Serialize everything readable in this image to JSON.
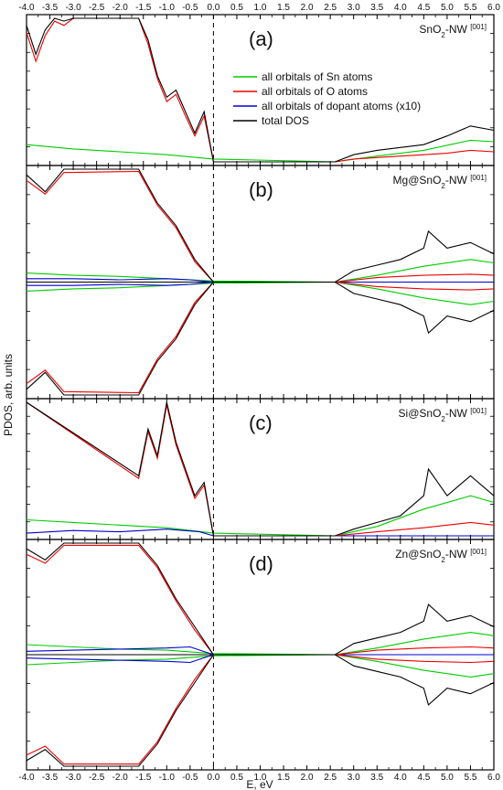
{
  "chart_data": {
    "type": "line",
    "xlabel": "E, eV",
    "ylabel": "PDOS, arb. units",
    "xlim": [
      -4.0,
      6.0
    ],
    "x_ticks": [
      "-4.0",
      "-3.5",
      "-3.0",
      "-2.5",
      "-2.0",
      "-1.5",
      "-1.0",
      "-0.5",
      "0.0",
      "0.5",
      "1.0",
      "1.5",
      "2.0",
      "2.5",
      "3.0",
      "3.5",
      "4.0",
      "4.5",
      "5.0",
      "5.5",
      "6.0"
    ],
    "fermi_level": 0.0,
    "legend": {
      "placement": "inside panel (a), upper-middle",
      "entries": [
        {
          "label": "all orbitals of Sn atoms",
          "color": "#00cc00"
        },
        {
          "label": "all orbitals of O atoms",
          "color": "#ee0000"
        },
        {
          "label": "all orbitals of dopant atoms (x10)",
          "color": "#0000cc"
        },
        {
          "label": "total DOS",
          "color": "#000000"
        }
      ]
    },
    "panels": [
      {
        "letter": "(a)",
        "title_main": "SnO",
        "title_sub": "2",
        "title_rest": "-NW ",
        "title_sup": "[001]",
        "spin_polarized": false,
        "has_dopant": false,
        "series": [
          {
            "name": "total DOS",
            "color": "#000000",
            "x": [
              -4.0,
              -3.8,
              -3.6,
              -3.4,
              -3.2,
              -3.0,
              -1.6,
              -1.4,
              -1.2,
              -1.0,
              -0.8,
              -0.6,
              -0.4,
              -0.2,
              0.0,
              2.6,
              3.0,
              3.5,
              4.0,
              4.5,
              5.0,
              5.5,
              6.0
            ],
            "y": [
              0.95,
              0.75,
              0.92,
              1.0,
              0.98,
              1.0,
              1.0,
              0.85,
              0.6,
              0.45,
              0.5,
              0.35,
              0.2,
              0.35,
              0.0,
              0.0,
              0.05,
              0.08,
              0.1,
              0.12,
              0.18,
              0.25,
              0.22
            ]
          },
          {
            "name": "all orbitals of O atoms",
            "color": "#ee0000",
            "x": [
              -4.0,
              -3.8,
              -3.6,
              -3.4,
              -3.2,
              -3.0,
              -1.6,
              -1.4,
              -1.2,
              -1.0,
              -0.8,
              -0.6,
              -0.4,
              -0.2,
              0.0,
              2.6,
              3.0,
              3.5,
              4.0,
              4.5,
              5.0,
              5.5,
              6.0
            ],
            "y": [
              0.9,
              0.7,
              0.88,
              0.98,
              0.95,
              1.0,
              1.0,
              0.82,
              0.58,
              0.42,
              0.47,
              0.32,
              0.18,
              0.32,
              0.0,
              0.0,
              0.02,
              0.03,
              0.04,
              0.05,
              0.06,
              0.08,
              0.07
            ]
          },
          {
            "name": "all orbitals of Sn atoms",
            "color": "#00cc00",
            "x": [
              -4.0,
              -3.0,
              -2.0,
              -1.0,
              0.0,
              2.6,
              3.5,
              4.5,
              5.5,
              6.0
            ],
            "y": [
              0.12,
              0.09,
              0.07,
              0.05,
              0.02,
              0.0,
              0.04,
              0.08,
              0.15,
              0.14
            ]
          }
        ]
      },
      {
        "letter": "(b)",
        "title_main": "Mg@SnO",
        "title_sub": "2",
        "title_rest": "-NW ",
        "title_sup": "[001]",
        "spin_polarized": true,
        "has_dopant": true,
        "series": [
          {
            "name": "total DOS",
            "color": "#000000",
            "x": [
              -4.0,
              -3.6,
              -3.2,
              -1.6,
              -1.2,
              -0.8,
              -0.4,
              0.0,
              2.6,
              3.0,
              3.5,
              4.0,
              4.5,
              4.6,
              5.0,
              5.5,
              6.0
            ],
            "y": [
              0.95,
              0.8,
              1.0,
              1.0,
              0.7,
              0.5,
              0.2,
              0.0,
              0.0,
              0.1,
              0.15,
              0.2,
              0.3,
              0.45,
              0.3,
              0.35,
              0.25
            ]
          },
          {
            "name": "all orbitals of O atoms",
            "color": "#ee0000",
            "x": [
              -4.0,
              -3.6,
              -3.2,
              -1.6,
              -1.2,
              -0.8,
              -0.4,
              0.0,
              2.6,
              3.5,
              4.5,
              5.5,
              6.0
            ],
            "y": [
              0.9,
              0.78,
              0.97,
              0.98,
              0.68,
              0.48,
              0.18,
              0.0,
              0.0,
              0.04,
              0.06,
              0.07,
              0.06
            ]
          },
          {
            "name": "all orbitals of Sn atoms",
            "color": "#00cc00",
            "x": [
              -4.0,
              -3.0,
              -2.0,
              -1.0,
              0.0,
              2.6,
              3.5,
              4.5,
              5.5,
              6.0
            ],
            "y": [
              0.08,
              0.06,
              0.05,
              0.03,
              0.01,
              0.0,
              0.06,
              0.14,
              0.2,
              0.17
            ]
          },
          {
            "name": "all orbitals of dopant atoms (x10)",
            "color": "#0000cc",
            "x": [
              -4.0,
              -3.0,
              -2.0,
              -1.0,
              -0.5,
              0.0,
              2.6,
              4.0,
              6.0
            ],
            "y": [
              0.03,
              0.03,
              0.02,
              0.03,
              0.02,
              0.0,
              0.0,
              0.0,
              0.0
            ]
          }
        ]
      },
      {
        "letter": "(c)",
        "title_main": "Si@SnO",
        "title_sub": "2",
        "title_rest": "-NW ",
        "title_sup": "[001]",
        "spin_polarized": false,
        "has_dopant": true,
        "series": [
          {
            "name": "total DOS",
            "color": "#000000",
            "x": [
              -4.0,
              -1.6,
              -1.4,
              -1.2,
              -1.0,
              -0.8,
              -0.6,
              -0.4,
              -0.2,
              0.0,
              2.6,
              3.0,
              3.5,
              4.0,
              4.5,
              4.6,
              5.0,
              5.5,
              6.0
            ],
            "y": [
              1.0,
              0.45,
              0.8,
              0.6,
              1.0,
              0.7,
              0.5,
              0.3,
              0.4,
              0.0,
              0.0,
              0.05,
              0.1,
              0.15,
              0.3,
              0.5,
              0.3,
              0.45,
              0.3
            ]
          },
          {
            "name": "all orbitals of O atoms",
            "color": "#ee0000",
            "x": [
              -4.0,
              -1.6,
              -1.4,
              -1.2,
              -1.0,
              -0.8,
              -0.6,
              -0.4,
              -0.2,
              0.0,
              2.6,
              3.5,
              4.5,
              5.5,
              6.0
            ],
            "y": [
              1.0,
              0.43,
              0.78,
              0.58,
              0.98,
              0.68,
              0.48,
              0.28,
              0.38,
              0.0,
              0.0,
              0.03,
              0.06,
              0.1,
              0.08
            ]
          },
          {
            "name": "all orbitals of Sn atoms",
            "color": "#00cc00",
            "x": [
              -4.0,
              -3.0,
              -2.0,
              -1.0,
              0.0,
              2.6,
              3.5,
              4.5,
              5.5,
              6.0
            ],
            "y": [
              0.12,
              0.1,
              0.08,
              0.06,
              0.02,
              0.0,
              0.07,
              0.2,
              0.3,
              0.25
            ]
          },
          {
            "name": "all orbitals of dopant atoms (x10)",
            "color": "#0000cc",
            "x": [
              -4.0,
              -3.0,
              -2.0,
              -1.0,
              -0.3,
              0.0,
              2.6,
              6.0
            ],
            "y": [
              0.02,
              0.04,
              0.03,
              0.05,
              0.03,
              0.0,
              0.0,
              0.0
            ]
          }
        ]
      },
      {
        "letter": "(d)",
        "title_main": "Zn@SnO",
        "title_sub": "2",
        "title_rest": "-NW ",
        "title_sup": "[001]",
        "spin_polarized": true,
        "has_dopant": true,
        "series": [
          {
            "name": "total DOS",
            "color": "#000000",
            "x": [
              -4.0,
              -3.6,
              -3.2,
              -1.6,
              -1.2,
              -0.8,
              -0.4,
              0.0,
              2.6,
              3.0,
              3.5,
              4.0,
              4.5,
              4.6,
              5.0,
              5.5,
              6.0
            ],
            "y": [
              0.95,
              0.85,
              1.0,
              1.0,
              0.8,
              0.5,
              0.25,
              0.0,
              0.0,
              0.1,
              0.15,
              0.2,
              0.3,
              0.45,
              0.3,
              0.35,
              0.25
            ]
          },
          {
            "name": "all orbitals of O atoms",
            "color": "#ee0000",
            "x": [
              -4.0,
              -3.6,
              -3.2,
              -1.6,
              -1.2,
              -0.8,
              -0.4,
              0.0,
              2.6,
              3.5,
              4.5,
              5.5,
              6.0
            ],
            "y": [
              0.9,
              0.82,
              0.98,
              0.98,
              0.78,
              0.48,
              0.22,
              0.0,
              0.0,
              0.04,
              0.06,
              0.07,
              0.06
            ]
          },
          {
            "name": "all orbitals of Sn atoms",
            "color": "#00cc00",
            "x": [
              -4.0,
              -3.0,
              -2.0,
              -1.0,
              0.0,
              2.6,
              3.5,
              4.5,
              5.5,
              6.0
            ],
            "y": [
              0.09,
              0.07,
              0.05,
              0.04,
              0.01,
              0.0,
              0.06,
              0.14,
              0.2,
              0.17
            ]
          },
          {
            "name": "all orbitals of dopant atoms (x10)",
            "color": "#0000cc",
            "x": [
              -4.0,
              -3.0,
              -2.0,
              -1.0,
              -0.5,
              0.0,
              2.6,
              6.0
            ],
            "y": [
              0.03,
              0.04,
              0.05,
              0.06,
              0.07,
              0.0,
              0.0,
              0.0
            ]
          }
        ]
      }
    ]
  }
}
